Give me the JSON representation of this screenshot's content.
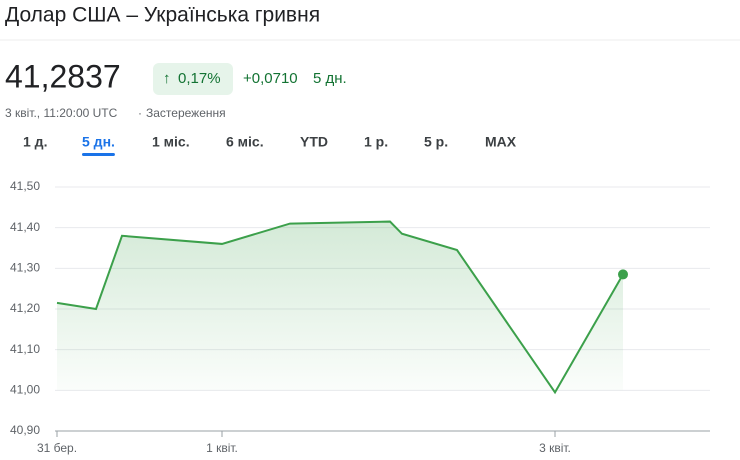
{
  "header": {
    "title": "Долар США – Українська гривня"
  },
  "quote": {
    "price": "41,2837",
    "change_pct": "0,17%",
    "change": "+0,0710",
    "period": "5 дн.",
    "timestamp": "3 квіт., 11:20:00 UTC",
    "disclaimer": "Застереження"
  },
  "tabs": [
    "1 д.",
    "5 дн.",
    "1 міс.",
    "6 міс.",
    "YTD",
    "1 р.",
    "5 р.",
    "MAX"
  ],
  "selected_tab": 1,
  "chart_data": {
    "type": "line",
    "categories": [
      "31 бер.",
      null,
      null,
      "1 квіт.",
      null,
      null,
      null,
      null,
      "3 квіт.",
      null
    ],
    "values": [
      41.215,
      41.2,
      41.38,
      41.36,
      41.41,
      41.415,
      41.385,
      41.345,
      40.995,
      41.285
    ],
    "color": "#3ca04b",
    "ylim": [
      40.9,
      41.5
    ],
    "yticks": [
      {
        "value": 40.9,
        "label": "40,90"
      },
      {
        "value": 41.0,
        "label": "41,00"
      },
      {
        "value": 41.1,
        "label": "41,10"
      },
      {
        "value": 41.2,
        "label": "41,20"
      },
      {
        "value": 41.3,
        "label": "41,30"
      },
      {
        "value": 41.4,
        "label": "41,40"
      },
      {
        "value": 41.5,
        "label": "41,50"
      }
    ],
    "grid": true
  }
}
